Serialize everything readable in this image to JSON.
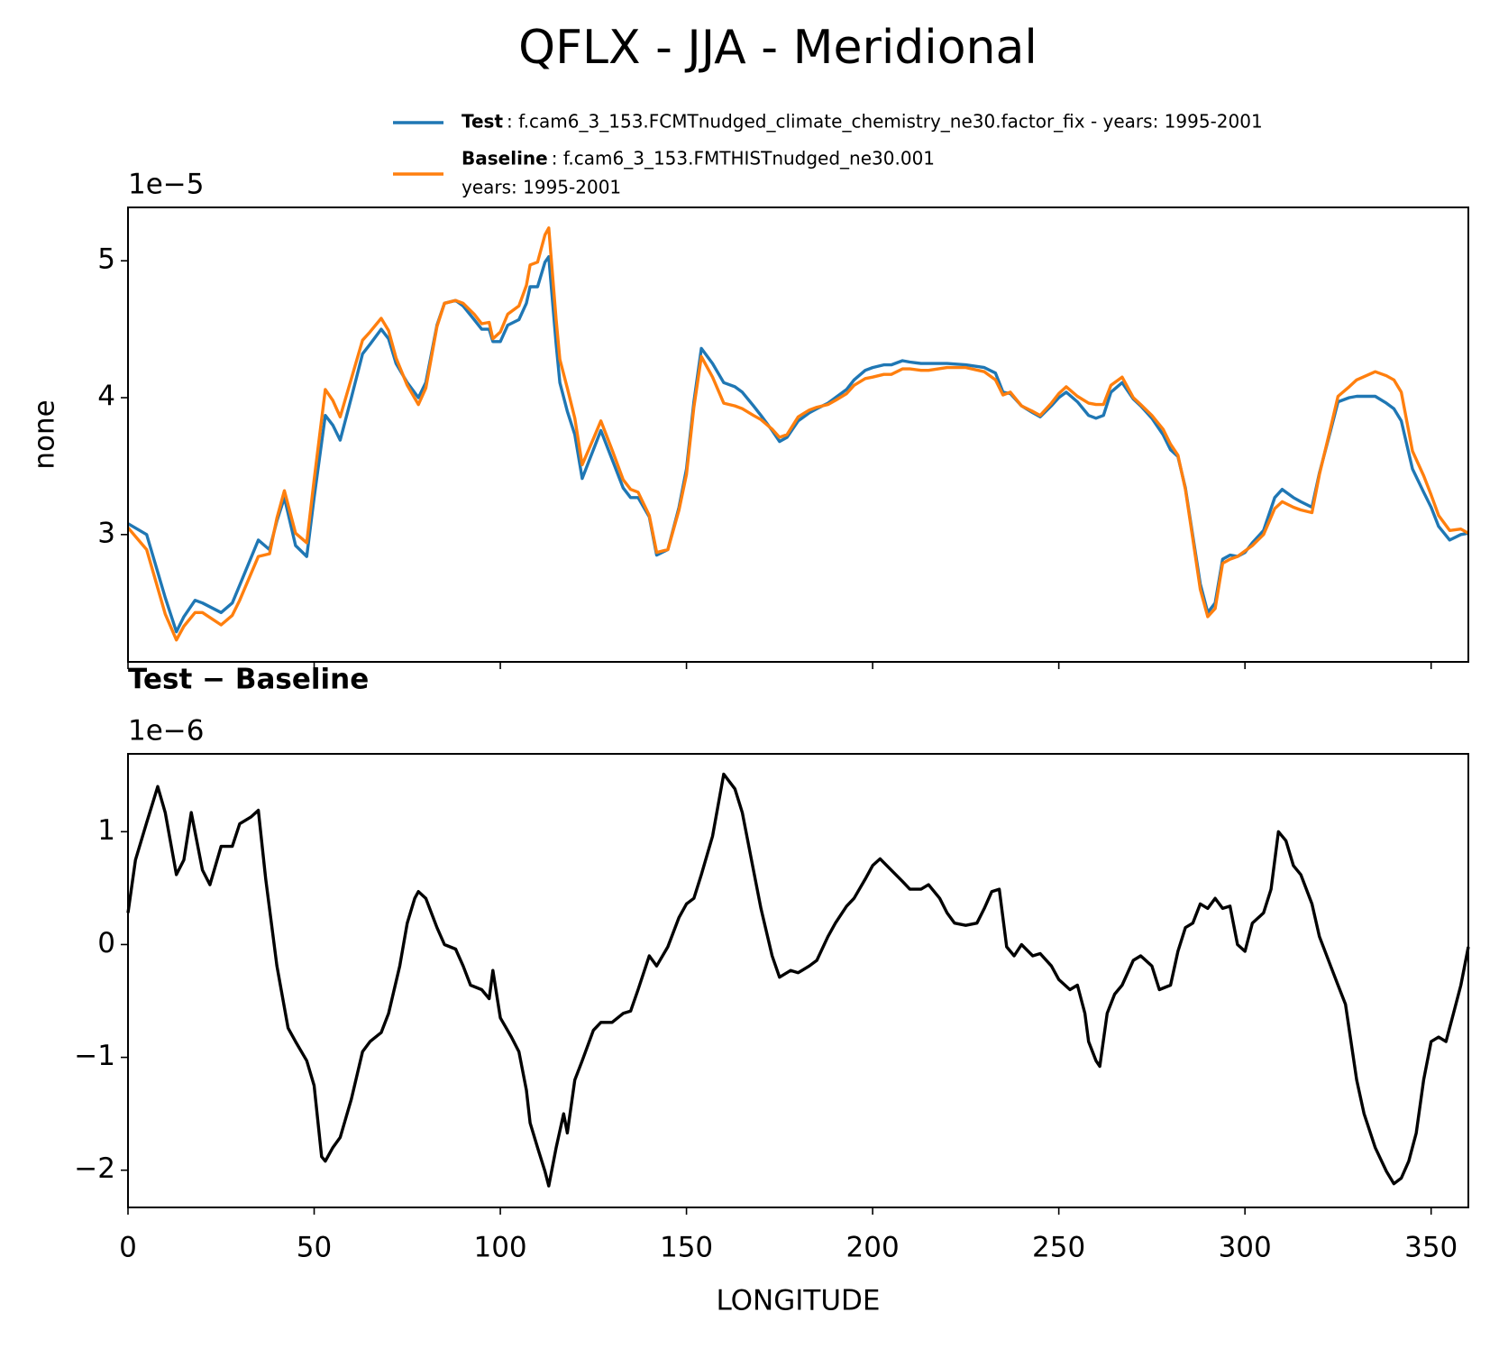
{
  "chart_data": [
    {
      "type": "line",
      "title": "QFLX - JJA - Meridional",
      "ylabel": "none",
      "offset_label": "1e−5",
      "xlim": [
        0,
        360
      ],
      "ylim": [
        2.07,
        5.39
      ],
      "yticks": [
        3,
        4,
        5
      ],
      "x": [
        0,
        5,
        10,
        13,
        15,
        18,
        20,
        25,
        28,
        30,
        35,
        38,
        40,
        42,
        45,
        48,
        50,
        53,
        55,
        57,
        60,
        63,
        65,
        68,
        70,
        72,
        75,
        78,
        80,
        83,
        85,
        88,
        90,
        93,
        95,
        97,
        98,
        100,
        102,
        105,
        107,
        108,
        110,
        112,
        113,
        115,
        116,
        118,
        120,
        122,
        125,
        127,
        130,
        133,
        135,
        137,
        140,
        142,
        145,
        148,
        150,
        152,
        154,
        157,
        160,
        163,
        165,
        168,
        170,
        173,
        175,
        177,
        180,
        183,
        185,
        188,
        190,
        193,
        195,
        198,
        200,
        203,
        205,
        208,
        210,
        213,
        215,
        220,
        225,
        230,
        233,
        235,
        237,
        240,
        243,
        245,
        248,
        250,
        252,
        255,
        258,
        260,
        262,
        264,
        267,
        270,
        272,
        275,
        278,
        280,
        282,
        284,
        286,
        288,
        290,
        292,
        294,
        296,
        298,
        300,
        302,
        305,
        308,
        310,
        313,
        315,
        318,
        320,
        323,
        325,
        328,
        330,
        335,
        338,
        340,
        342,
        345,
        348,
        350,
        352,
        355,
        358,
        360
      ],
      "series": [
        {
          "name": "Test",
          "label_lines": [
            ": f.cam6_3_153.FCMTnudged_climate_chemistry_ne30.factor_fix - years: 1995-2001"
          ],
          "color": "#1f77b4",
          "values": [
            3.08,
            3.0,
            2.54,
            2.29,
            2.4,
            2.52,
            2.5,
            2.43,
            2.5,
            2.63,
            2.96,
            2.89,
            3.1,
            3.27,
            2.92,
            2.84,
            3.27,
            3.87,
            3.8,
            3.69,
            4.0,
            4.32,
            4.39,
            4.5,
            4.43,
            4.25,
            4.11,
            4.0,
            4.11,
            4.53,
            4.69,
            4.71,
            4.67,
            4.57,
            4.5,
            4.5,
            4.41,
            4.41,
            4.53,
            4.57,
            4.69,
            4.81,
            4.81,
            4.99,
            5.03,
            4.39,
            4.11,
            3.9,
            3.73,
            3.41,
            3.62,
            3.76,
            3.55,
            3.34,
            3.27,
            3.27,
            3.13,
            2.85,
            2.89,
            3.2,
            3.48,
            3.97,
            4.36,
            4.25,
            4.11,
            4.08,
            4.04,
            3.94,
            3.87,
            3.76,
            3.68,
            3.71,
            3.83,
            3.89,
            3.92,
            3.96,
            4.0,
            4.06,
            4.13,
            4.2,
            4.22,
            4.24,
            4.24,
            4.27,
            4.26,
            4.25,
            4.25,
            4.25,
            4.24,
            4.22,
            4.18,
            4.04,
            4.03,
            3.94,
            3.89,
            3.86,
            3.94,
            4.0,
            4.04,
            3.97,
            3.87,
            3.85,
            3.87,
            4.04,
            4.11,
            3.99,
            3.94,
            3.85,
            3.73,
            3.62,
            3.57,
            3.34,
            2.99,
            2.64,
            2.43,
            2.5,
            2.82,
            2.85,
            2.84,
            2.87,
            2.94,
            3.03,
            3.27,
            3.33,
            3.27,
            3.24,
            3.2,
            3.45,
            3.76,
            3.97,
            4.0,
            4.01,
            4.01,
            3.96,
            3.92,
            3.83,
            3.48,
            3.31,
            3.2,
            3.06,
            2.96,
            3.0,
            3.01
          ]
        },
        {
          "name": "Baseline",
          "label_lines": [
            ": f.cam6_3_153.FMTHISTnudged_ne30.001",
            "years: 1995-2001"
          ],
          "color": "#ff7f0e",
          "values": [
            3.05,
            2.89,
            2.42,
            2.23,
            2.33,
            2.43,
            2.43,
            2.34,
            2.41,
            2.52,
            2.84,
            2.86,
            3.12,
            3.32,
            3.01,
            2.94,
            3.4,
            4.06,
            3.98,
            3.86,
            4.14,
            4.42,
            4.48,
            4.58,
            4.49,
            4.29,
            4.09,
            3.95,
            4.07,
            4.52,
            4.69,
            4.71,
            4.69,
            4.61,
            4.54,
            4.55,
            4.43,
            4.48,
            4.61,
            4.67,
            4.82,
            4.97,
            4.99,
            5.19,
            5.24,
            4.57,
            4.28,
            4.07,
            3.85,
            3.51,
            3.7,
            3.83,
            3.62,
            3.4,
            3.33,
            3.31,
            3.14,
            2.87,
            2.89,
            3.18,
            3.44,
            3.93,
            4.3,
            4.15,
            3.96,
            3.94,
            3.92,
            3.87,
            3.84,
            3.77,
            3.71,
            3.73,
            3.86,
            3.91,
            3.93,
            3.95,
            3.98,
            4.03,
            4.09,
            4.14,
            4.15,
            4.17,
            4.17,
            4.21,
            4.21,
            4.2,
            4.2,
            4.22,
            4.22,
            4.19,
            4.13,
            4.02,
            4.04,
            3.94,
            3.9,
            3.87,
            3.96,
            4.03,
            4.08,
            4.01,
            3.96,
            3.95,
            3.95,
            4.09,
            4.15,
            4.0,
            3.95,
            3.87,
            3.77,
            3.66,
            3.58,
            3.33,
            2.97,
            2.6,
            2.4,
            2.46,
            2.79,
            2.82,
            2.84,
            2.88,
            2.92,
            3.0,
            3.19,
            3.24,
            3.2,
            3.18,
            3.16,
            3.44,
            3.78,
            4.01,
            4.08,
            4.13,
            4.19,
            4.16,
            4.13,
            4.04,
            3.61,
            3.43,
            3.29,
            3.14,
            3.03,
            3.04,
            3.01
          ]
        }
      ]
    },
    {
      "type": "line",
      "title": "Test − Baseline",
      "offset_label": "1e−6",
      "xlabel": "LONGITUDE",
      "xlim": [
        0,
        360
      ],
      "xticks": [
        0,
        50,
        100,
        150,
        200,
        250,
        300,
        350
      ],
      "ylim": [
        -2.33,
        1.69
      ],
      "yticks": [
        {
          "value": -2,
          "label": "−2"
        },
        {
          "value": -1,
          "label": "−1"
        },
        0,
        1
      ],
      "color": "#000000",
      "x": [
        0,
        2,
        5,
        8,
        10,
        13,
        15,
        17,
        20,
        22,
        25,
        28,
        30,
        33,
        35,
        37,
        40,
        43,
        45,
        48,
        50,
        52,
        53,
        55,
        57,
        60,
        63,
        65,
        68,
        70,
        73,
        75,
        77,
        78,
        80,
        83,
        85,
        88,
        90,
        92,
        95,
        97,
        98,
        100,
        103,
        105,
        107,
        108,
        110,
        112,
        113,
        115,
        117,
        118,
        120,
        122,
        125,
        127,
        130,
        133,
        135,
        137,
        140,
        142,
        145,
        148,
        150,
        152,
        154,
        157,
        160,
        163,
        165,
        168,
        170,
        173,
        175,
        178,
        180,
        183,
        185,
        188,
        190,
        193,
        195,
        198,
        200,
        202,
        205,
        208,
        210,
        213,
        215,
        218,
        220,
        222,
        225,
        228,
        230,
        232,
        234,
        236,
        238,
        240,
        243,
        245,
        248,
        250,
        253,
        255,
        257,
        258,
        260,
        261,
        263,
        265,
        267,
        270,
        272,
        275,
        277,
        280,
        282,
        284,
        286,
        288,
        290,
        292,
        294,
        296,
        298,
        300,
        302,
        305,
        307,
        309,
        311,
        313,
        315,
        318,
        320,
        323,
        325,
        327,
        330,
        332,
        335,
        338,
        340,
        342,
        344,
        346,
        348,
        350,
        352,
        354,
        356,
        358,
        360
      ],
      "values": [
        0.28,
        0.75,
        1.08,
        1.4,
        1.17,
        0.62,
        0.75,
        1.17,
        0.66,
        0.53,
        0.87,
        0.87,
        1.07,
        1.13,
        1.19,
        0.58,
        -0.19,
        -0.74,
        -0.86,
        -1.03,
        -1.25,
        -1.88,
        -1.92,
        -1.8,
        -1.71,
        -1.37,
        -0.95,
        -0.86,
        -0.78,
        -0.61,
        -0.19,
        0.19,
        0.41,
        0.47,
        0.41,
        0.15,
        0,
        -0.04,
        -0.19,
        -0.36,
        -0.4,
        -0.48,
        -0.23,
        -0.65,
        -0.82,
        -0.95,
        -1.29,
        -1.58,
        -1.8,
        -2.01,
        -2.14,
        -1.8,
        -1.5,
        -1.67,
        -1.2,
        -1.03,
        -0.76,
        -0.69,
        -0.69,
        -0.61,
        -0.59,
        -0.4,
        -0.1,
        -0.19,
        -0.02,
        0.24,
        0.36,
        0.41,
        0.62,
        0.96,
        1.51,
        1.38,
        1.17,
        0.66,
        0.32,
        -0.1,
        -0.29,
        -0.23,
        -0.25,
        -0.19,
        -0.14,
        0.07,
        0.19,
        0.34,
        0.41,
        0.58,
        0.7,
        0.76,
        0.66,
        0.56,
        0.49,
        0.49,
        0.53,
        0.41,
        0.28,
        0.19,
        0.17,
        0.19,
        0.32,
        0.47,
        0.49,
        -0.02,
        -0.1,
        0,
        -0.1,
        -0.08,
        -0.19,
        -0.31,
        -0.4,
        -0.36,
        -0.61,
        -0.86,
        -1.03,
        -1.08,
        -0.61,
        -0.44,
        -0.36,
        -0.14,
        -0.1,
        -0.19,
        -0.4,
        -0.36,
        -0.06,
        0.15,
        0.19,
        0.36,
        0.32,
        0.41,
        0.32,
        0.34,
        0,
        -0.06,
        0.19,
        0.28,
        0.49,
        1.0,
        0.92,
        0.7,
        0.62,
        0.36,
        0.07,
        -0.19,
        -0.36,
        -0.53,
        -1.2,
        -1.5,
        -1.8,
        -2.01,
        -2.12,
        -2.07,
        -1.92,
        -1.67,
        -1.2,
        -0.86,
        -0.82,
        -0.86,
        -0.61,
        -0.36,
        -0.02
      ]
    }
  ]
}
